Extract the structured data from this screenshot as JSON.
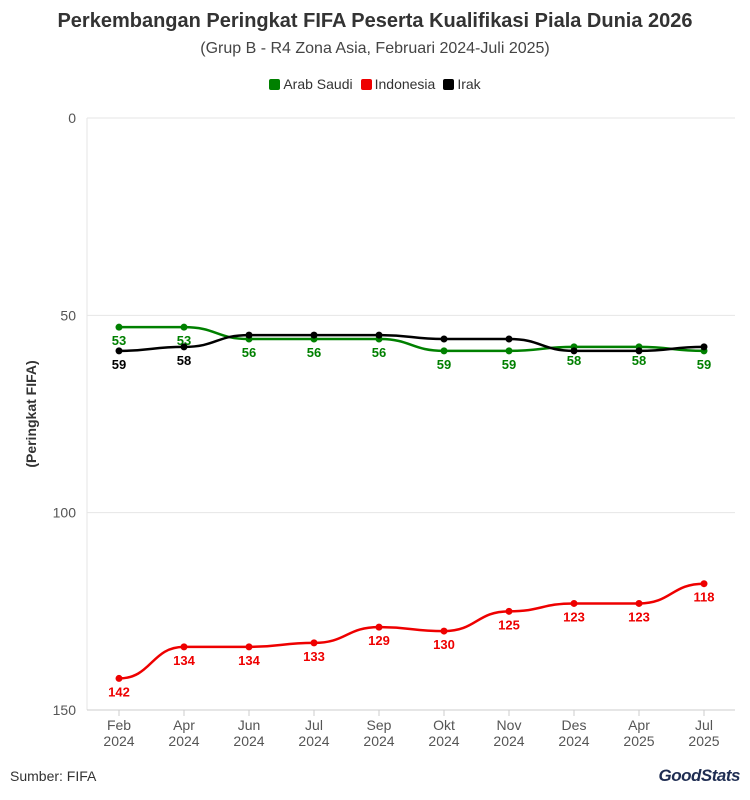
{
  "chart_data": {
    "type": "line",
    "title": "Perkembangan Peringkat FIFA Peserta Kualifikasi Piala Dunia 2026",
    "subtitle": "(Grup B - R4 Zona Asia, Februari 2024-Juli 2025)",
    "ylabel": "(Peringkat FIFA)",
    "xlabel": "",
    "ylim": [
      0,
      150
    ],
    "y_reversed": true,
    "y_ticks": [
      "0",
      "50",
      "100",
      "150"
    ],
    "categories": [
      [
        "Feb",
        "2024"
      ],
      [
        "Apr",
        "2024"
      ],
      [
        "Jun",
        "2024"
      ],
      [
        "Jul",
        "2024"
      ],
      [
        "Sep",
        "2024"
      ],
      [
        "Okt",
        "2024"
      ],
      [
        "Nov",
        "2024"
      ],
      [
        "Des",
        "2024"
      ],
      [
        "Apr",
        "2025"
      ],
      [
        "Jul",
        "2025"
      ]
    ],
    "series": [
      {
        "name": "Arab Saudi",
        "color": "#008000",
        "values": [
          53,
          53,
          56,
          56,
          56,
          59,
          59,
          58,
          58,
          59
        ],
        "label_pos": "below"
      },
      {
        "name": "Indonesia",
        "color": "#ee0000",
        "values": [
          142,
          134,
          134,
          133,
          129,
          130,
          125,
          123,
          123,
          118
        ],
        "label_pos": "below"
      },
      {
        "name": "Irak",
        "color": "#000000",
        "values": [
          59,
          58,
          55,
          55,
          55,
          56,
          56,
          59,
          59,
          58
        ],
        "label_pos": "below",
        "labeled_points": [
          0,
          1
        ]
      }
    ],
    "grid": true,
    "legend_position": "top"
  },
  "footer": {
    "source": "Sumber: FIFA",
    "logo": "GoodStats"
  }
}
